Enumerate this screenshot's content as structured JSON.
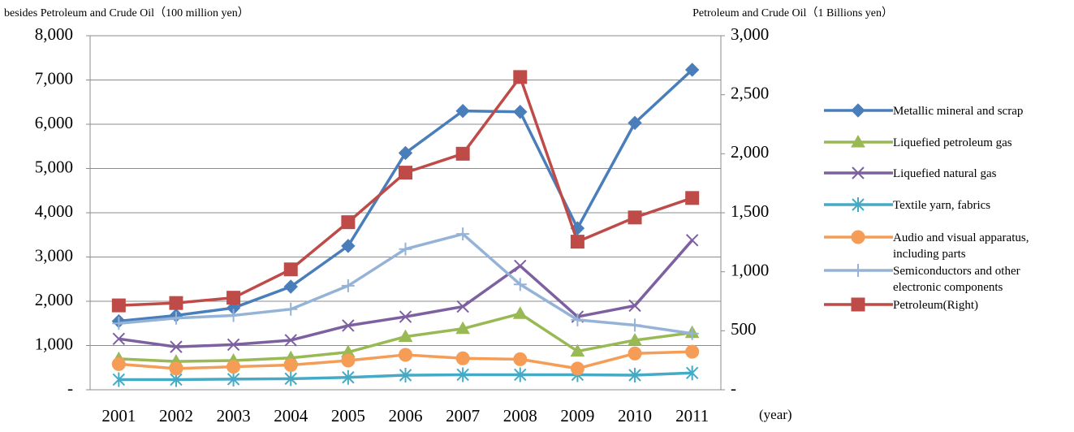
{
  "chart_data": {
    "type": "line",
    "y_label": "besides Petroleum and Crude Oil（100 million yen）",
    "y2_label": "Petroleum and Crude Oil（1 Billions yen）",
    "x_label": "(year)",
    "categories": [
      "2001",
      "2002",
      "2003",
      "2004",
      "2005",
      "2006",
      "2007",
      "2008",
      "2009",
      "2010",
      "2011"
    ],
    "ylim": [
      0,
      8000
    ],
    "yticks": [
      {
        "value": 0,
        "label": "-"
      },
      {
        "value": 1000,
        "label": "1,000"
      },
      {
        "value": 2000,
        "label": "2,000"
      },
      {
        "value": 3000,
        "label": "3,000"
      },
      {
        "value": 4000,
        "label": "4,000"
      },
      {
        "value": 5000,
        "label": "5,000"
      },
      {
        "value": 6000,
        "label": "6,000"
      },
      {
        "value": 7000,
        "label": "7,000"
      },
      {
        "value": 8000,
        "label": "8,000"
      }
    ],
    "y2lim": [
      0,
      3000
    ],
    "y2ticks": [
      {
        "value": 0,
        "label": "-"
      },
      500,
      {
        "value": 1000,
        "label": "1,000"
      },
      {
        "value": 1500,
        "label": "1,500"
      },
      {
        "value": 2000,
        "label": "2,000"
      },
      {
        "value": 2500,
        "label": "2,500"
      },
      {
        "value": 3000,
        "label": "3,000"
      }
    ],
    "grid": true,
    "legend": "right",
    "series": [
      {
        "name": "Metallic mineral and scrap",
        "color": "#4a7ebb",
        "marker": "diamond",
        "values": [
          1550,
          1680,
          1850,
          2330,
          3250,
          5350,
          6300,
          6280,
          3650,
          6030,
          7230
        ]
      },
      {
        "name": "Liquefied petroleum gas",
        "color": "#98b954",
        "marker": "triangle",
        "values": [
          700,
          640,
          660,
          720,
          850,
          1200,
          1380,
          1720,
          870,
          1120,
          1290
        ]
      },
      {
        "name": "Liquefied natural gas",
        "color": "#7d60a0",
        "marker": "x",
        "values": [
          1150,
          970,
          1020,
          1120,
          1450,
          1650,
          1880,
          2800,
          1650,
          1900,
          3380
        ]
      },
      {
        "name": "Textile yarn, fabrics",
        "color": "#46aac5",
        "marker": "star",
        "values": [
          230,
          230,
          240,
          250,
          280,
          330,
          340,
          340,
          340,
          330,
          380
        ]
      },
      {
        "name": "Audio and visual apparatus, including parts",
        "color": "#f59d56",
        "marker": "circle",
        "values": [
          580,
          480,
          520,
          560,
          660,
          790,
          710,
          690,
          480,
          820,
          860
        ]
      },
      {
        "name": "Semiconductors and other electronic components",
        "color": "#95b3d7",
        "marker": "plus",
        "values": [
          1500,
          1620,
          1680,
          1820,
          2350,
          3180,
          3520,
          2380,
          1580,
          1460,
          1270
        ]
      },
      {
        "name": "Petroleum(Right)",
        "color": "#be4b48",
        "marker": "square",
        "axis": "y2",
        "values": [
          715,
          735,
          780,
          1020,
          1420,
          1840,
          2000,
          2650,
          1255,
          1460,
          1625
        ]
      }
    ]
  }
}
